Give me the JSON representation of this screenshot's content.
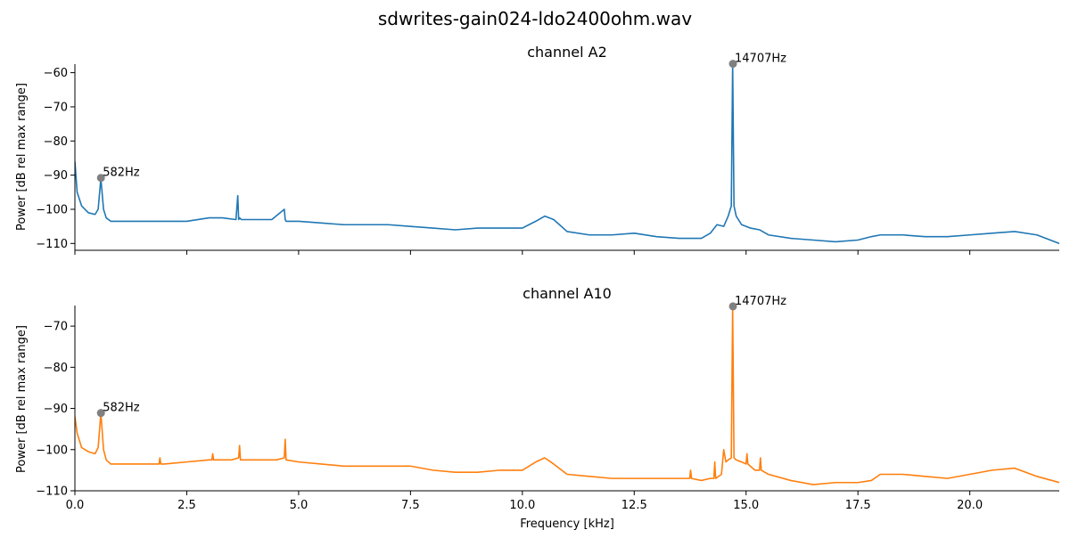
{
  "figure": {
    "suptitle": "sdwrites-gain024-ldo2400ohm.wav"
  },
  "chart_data": [
    {
      "type": "line",
      "title": "channel A2",
      "xlabel": "",
      "ylabel": "Power [dB rel max range]",
      "xlim": [
        0,
        22
      ],
      "ylim": [
        -112,
        -57.5
      ],
      "xticks": [
        0,
        2.5,
        5,
        7.5,
        10,
        12.5,
        15,
        17.5,
        20
      ],
      "xtick_labels_visible": false,
      "yticks": [
        -60,
        -70,
        -80,
        -90,
        -100,
        -110
      ],
      "ytick_labels": [
        "−60",
        "−70",
        "−80",
        "−90",
        "−100",
        "−110"
      ],
      "grid": false,
      "color": "#1f77b4",
      "series": [
        {
          "x": [
            0,
            0.05,
            0.15,
            0.3,
            0.45,
            0.52,
            0.56,
            0.58,
            0.6,
            0.64,
            0.7,
            0.8,
            1.0,
            1.5,
            2.0,
            2.5,
            3.0,
            3.3,
            3.6,
            3.64,
            3.66,
            3.68,
            3.72,
            4.0,
            4.4,
            4.68,
            4.7,
            4.72,
            5.0,
            5.5,
            6.0,
            6.5,
            7.0,
            7.5,
            8.0,
            8.5,
            9.0,
            9.5,
            10.0,
            10.3,
            10.5,
            10.7,
            11.0,
            11.5,
            12.0,
            12.5,
            13.0,
            13.5,
            14.0,
            14.2,
            14.35,
            14.5,
            14.6,
            14.67,
            14.7,
            14.73,
            14.78,
            14.9,
            15.1,
            15.3,
            15.5,
            16.0,
            16.5,
            17.0,
            17.5,
            17.8,
            18.0,
            18.5,
            19.0,
            19.5,
            20.0,
            20.5,
            21.0,
            21.5,
            22.0
          ],
          "y": [
            -86,
            -95,
            -99,
            -101,
            -101.5,
            -100,
            -94,
            -91,
            -94,
            -100,
            -102.5,
            -103.5,
            -103.5,
            -103.5,
            -103.5,
            -103.5,
            -102.5,
            -102.5,
            -103,
            -96,
            -103,
            -102.5,
            -103,
            -103,
            -103,
            -100,
            -103,
            -103.5,
            -103.5,
            -104,
            -104.5,
            -104.5,
            -104.5,
            -105,
            -105.5,
            -106,
            -105.5,
            -105.5,
            -105.5,
            -103.5,
            -102,
            -103,
            -106.5,
            -107.5,
            -107.5,
            -107,
            -108,
            -108.5,
            -108.5,
            -107,
            -104.5,
            -105,
            -102,
            -99,
            -57.4,
            -99,
            -102,
            -104.5,
            -105.5,
            -106,
            -107.5,
            -108.5,
            -109,
            -109.5,
            -109,
            -108,
            -107.5,
            -107.5,
            -108,
            -108,
            -107.5,
            -107,
            -106.5,
            -107.5,
            -110
          ]
        }
      ],
      "annotations": [
        {
          "x": 0.582,
          "y": -90.8,
          "label": "582Hz"
        },
        {
          "x": 14.707,
          "y": -57.4,
          "label": "14707Hz"
        }
      ]
    },
    {
      "type": "line",
      "title": "channel A10",
      "xlabel": "Frequency [kHz]",
      "ylabel": "Power [dB rel max range]",
      "xlim": [
        0,
        22
      ],
      "ylim": [
        -110,
        -65
      ],
      "xticks": [
        0,
        2.5,
        5,
        7.5,
        10,
        12.5,
        15,
        17.5,
        20
      ],
      "xtick_labels": [
        "0.0",
        "2.5",
        "5.0",
        "7.5",
        "10.0",
        "12.5",
        "15.0",
        "17.5",
        "20.0"
      ],
      "yticks": [
        -70,
        -80,
        -90,
        -100,
        -110
      ],
      "ytick_labels": [
        "−70",
        "−80",
        "−90",
        "−100",
        "−110"
      ],
      "grid": false,
      "color": "#ff7f0e",
      "series": [
        {
          "x": [
            0,
            0.05,
            0.15,
            0.3,
            0.45,
            0.52,
            0.56,
            0.58,
            0.6,
            0.64,
            0.7,
            0.8,
            1.0,
            1.5,
            1.88,
            1.9,
            1.92,
            2.0,
            2.5,
            3.0,
            3.06,
            3.08,
            3.1,
            3.5,
            3.66,
            3.68,
            3.7,
            4.0,
            4.2,
            4.5,
            4.68,
            4.7,
            4.72,
            5.0,
            5.5,
            6.0,
            6.5,
            7.0,
            7.5,
            8.0,
            8.5,
            9.0,
            9.5,
            10.0,
            10.3,
            10.5,
            10.7,
            11.0,
            11.5,
            12.0,
            12.5,
            13.0,
            13.5,
            13.74,
            13.76,
            13.78,
            14.0,
            14.2,
            14.28,
            14.3,
            14.32,
            14.45,
            14.5,
            14.55,
            14.6,
            14.67,
            14.7,
            14.73,
            14.78,
            14.9,
            15.0,
            15.02,
            15.04,
            15.2,
            15.3,
            15.32,
            15.34,
            15.5,
            16.0,
            16.5,
            17.0,
            17.5,
            17.8,
            18.0,
            18.5,
            19.0,
            19.5,
            20.0,
            20.5,
            21.0,
            21.5,
            22.0
          ],
          "y": [
            -92,
            -96,
            -99.5,
            -100.5,
            -101,
            -99.5,
            -94,
            -91,
            -94,
            -100,
            -102.5,
            -103.5,
            -103.5,
            -103.5,
            -103.5,
            -102,
            -103.5,
            -103.5,
            -103,
            -102.5,
            -102.5,
            -101,
            -102.5,
            -102.5,
            -102,
            -99,
            -102.5,
            -102.5,
            -102.5,
            -102.5,
            -102,
            -97.5,
            -102.5,
            -103,
            -103.5,
            -104,
            -104,
            -104,
            -104,
            -105,
            -105.5,
            -105.5,
            -105,
            -105,
            -103,
            -102,
            -103.5,
            -106,
            -106.5,
            -107,
            -107,
            -107,
            -107,
            -107,
            -105,
            -107,
            -107.5,
            -107,
            -107,
            -103,
            -107,
            -106,
            -100,
            -103,
            -102.5,
            -102,
            -65.2,
            -102,
            -102.5,
            -103,
            -103.5,
            -101,
            -103.5,
            -105,
            -105,
            -102,
            -105,
            -106,
            -107.5,
            -108.5,
            -108,
            -108,
            -107.5,
            -106,
            -106,
            -106.5,
            -107,
            -106,
            -105,
            -104.5,
            -106.5,
            -108
          ]
        }
      ],
      "annotations": [
        {
          "x": 0.582,
          "y": -91.1,
          "label": "582Hz"
        },
        {
          "x": 14.707,
          "y": -65.2,
          "label": "14707Hz"
        }
      ]
    }
  ]
}
